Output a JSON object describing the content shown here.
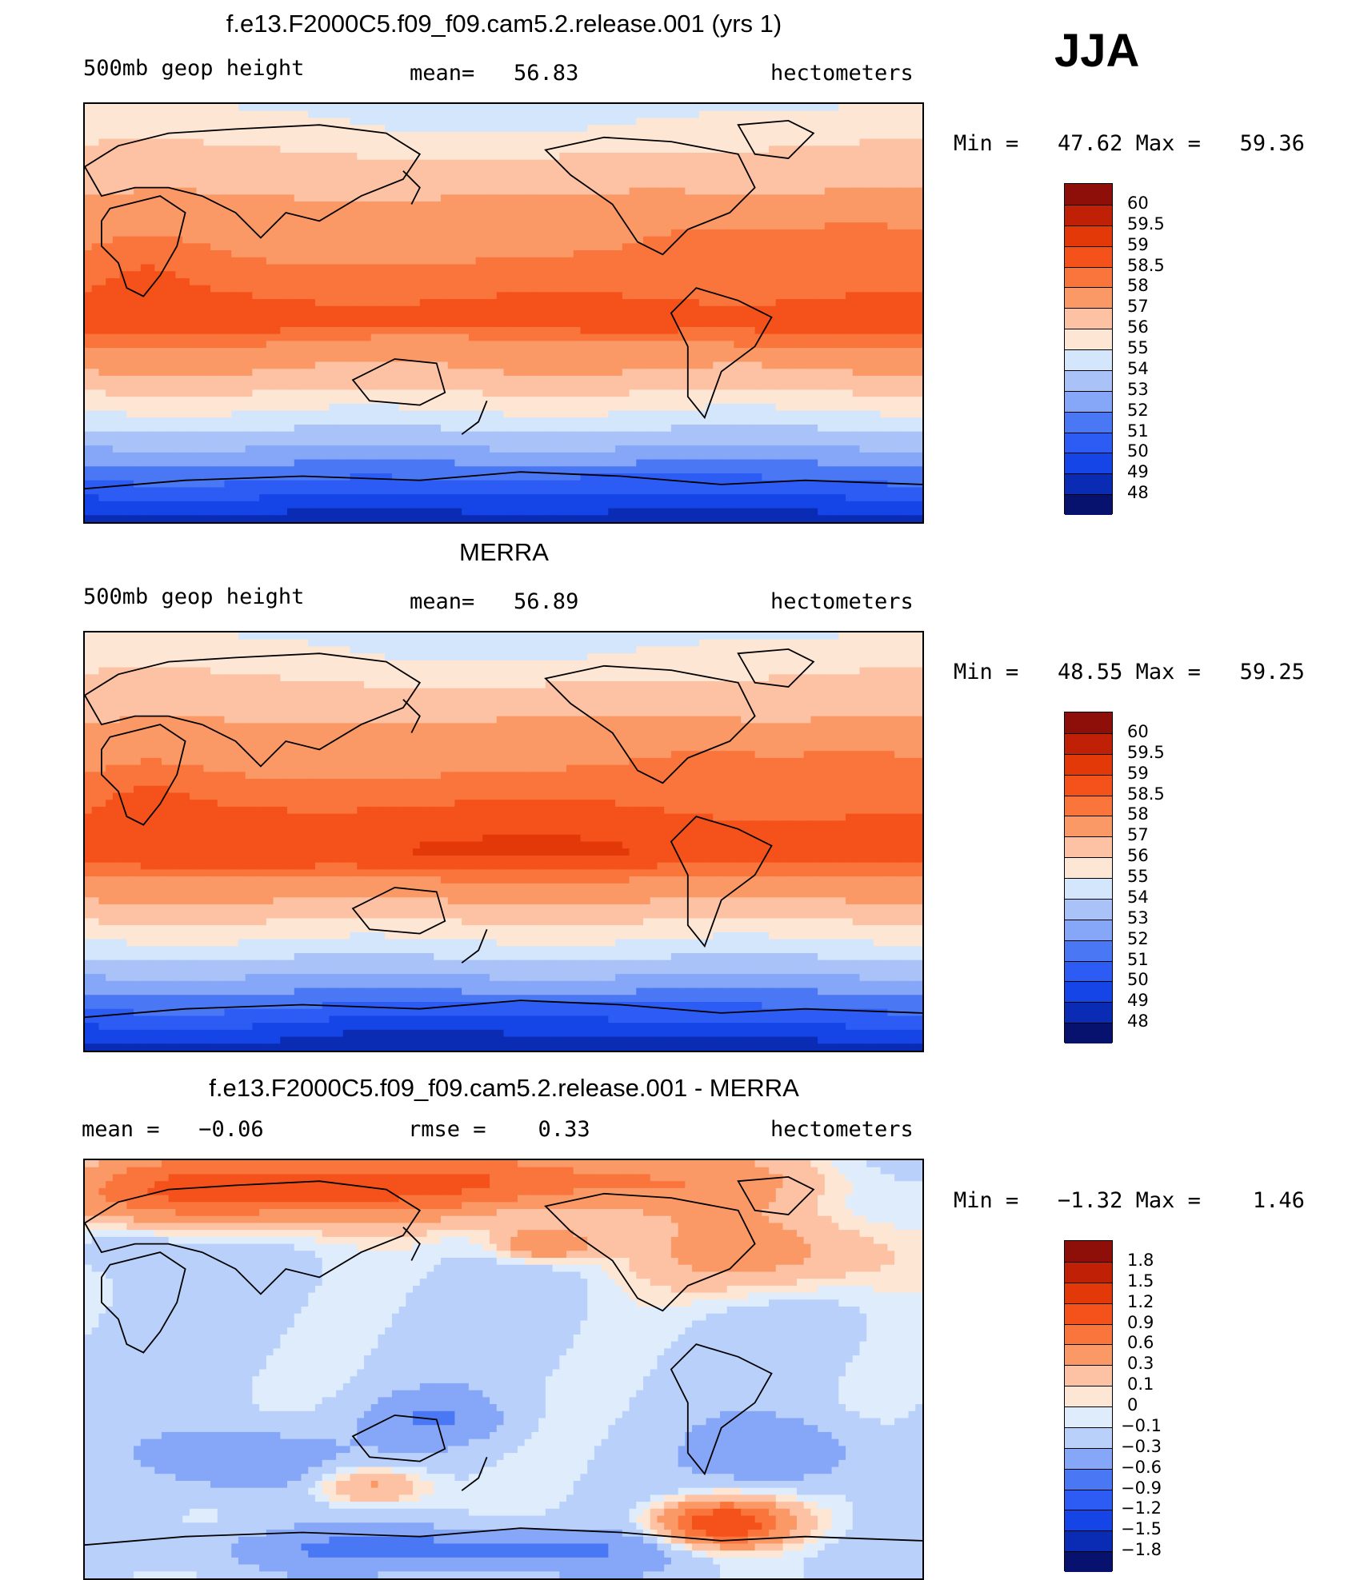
{
  "season": "JJA",
  "colors": {
    "abs": [
      "#06126e",
      "#0a2bb3",
      "#1545e6",
      "#2d5cf5",
      "#4a78f5",
      "#86a7f7",
      "#a9c3f9",
      "#d4e6fb",
      "#fde6d4",
      "#fcc2a3",
      "#fb9966",
      "#f9753c",
      "#f5511a",
      "#e33808",
      "#c02006",
      "#8e0f0a"
    ],
    "diff": [
      "#06126e",
      "#0a2bb3",
      "#1545e6",
      "#2d5cf5",
      "#4a78f5",
      "#86a7f7",
      "#b8d0fa",
      "#deecfc",
      "#fde6d4",
      "#fcc2a3",
      "#fb9966",
      "#f9753c",
      "#f5511a",
      "#e33808",
      "#c02006",
      "#8e0f0a"
    ],
    "coast": "#000000"
  },
  "chart_data": [
    {
      "type": "heatmap",
      "title": "f.e13.F2000C5.f09_f09.cam5.2.release.001 (yrs 1)",
      "variable": "500mb geop height",
      "stat1": "mean=   56.83",
      "units": "hectometers",
      "minmax": "Min =   47.62 Max =   59.36",
      "min": 47.62,
      "max": 59.36,
      "colorbar_labels": [
        "60",
        "59.5",
        "59",
        "58.5",
        "58",
        "57",
        "56",
        "55",
        "54",
        "53",
        "52",
        "51",
        "50",
        "49",
        "48"
      ],
      "colorbar_levels": [
        48,
        49,
        50,
        51,
        52,
        53,
        54,
        55,
        56,
        57,
        58,
        58.5,
        59,
        59.5,
        60
      ]
    },
    {
      "type": "heatmap",
      "title": "MERRA",
      "variable": "500mb geop height",
      "stat1": "mean=   56.89",
      "units": "hectometers",
      "minmax": "Min =   48.55 Max =   59.25",
      "min": 48.55,
      "max": 59.25,
      "colorbar_labels": [
        "60",
        "59.5",
        "59",
        "58.5",
        "58",
        "57",
        "56",
        "55",
        "54",
        "53",
        "52",
        "51",
        "50",
        "49",
        "48"
      ],
      "colorbar_levels": [
        48,
        49,
        50,
        51,
        52,
        53,
        54,
        55,
        56,
        57,
        58,
        58.5,
        59,
        59.5,
        60
      ]
    },
    {
      "type": "heatmap",
      "title": "f.e13.F2000C5.f09_f09.cam5.2.release.001 - MERRA",
      "variable": "mean =   −0.06",
      "stat1": "rmse =    0.33",
      "units": "hectometers",
      "minmax": "Min =   −1.32 Max =    1.46",
      "min": -1.32,
      "max": 1.46,
      "mean": -0.06,
      "rmse": 0.33,
      "colorbar_labels": [
        "1.8",
        "1.5",
        "1.2",
        "0.9",
        "0.6",
        "0.3",
        "0.1",
        "0",
        "−0.1",
        "−0.3",
        "−0.6",
        "−0.9",
        "−1.2",
        "−1.5",
        "−1.8"
      ],
      "colorbar_levels": [
        -1.8,
        -1.5,
        -1.2,
        -0.9,
        -0.6,
        -0.3,
        -0.1,
        0,
        0.1,
        0.3,
        0.6,
        0.9,
        1.2,
        1.5,
        1.8
      ]
    }
  ]
}
